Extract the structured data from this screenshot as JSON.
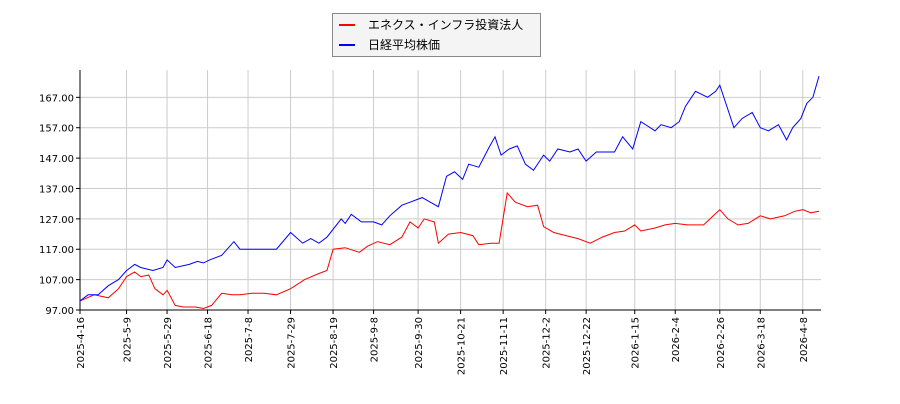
{
  "chart_data": {
    "type": "line",
    "xlim": [
      "2025-04-16",
      "2026-04-17"
    ],
    "ylim": [
      97,
      176
    ],
    "yticks": [
      97,
      107,
      117,
      127,
      137,
      147,
      157,
      167
    ],
    "ytick_labels": [
      "97.00",
      "107.00",
      "117.00",
      "127.00",
      "137.00",
      "147.00",
      "157.00",
      "167.00"
    ],
    "xticks": [
      "2025-04-16",
      "2025-05-09",
      "2025-05-29",
      "2025-06-18",
      "2025-07-08",
      "2025-07-29",
      "2025-08-19",
      "2025-09-08",
      "2025-09-30",
      "2025-10-21",
      "2025-11-11",
      "2025-12-02",
      "2025-12-22",
      "2026-01-15",
      "2026-02-04",
      "2026-02-26",
      "2026-03-18",
      "2026-04-08"
    ],
    "xtick_labels": [
      "2025-4-16",
      "2025-5-9",
      "2025-5-29",
      "2025-6-18",
      "2025-7-8",
      "2025-7-29",
      "2025-8-19",
      "2025-9-8",
      "2025-9-30",
      "2025-10-21",
      "2025-11-11",
      "2025-12-2",
      "2025-12-22",
      "2026-1-15",
      "2026-2-4",
      "2026-2-26",
      "2026-3-18",
      "2026-4-8"
    ],
    "grid": true,
    "legend_position": "top-center",
    "series": [
      {
        "name": "エネクス・インフラ投資法人",
        "color": "#ff0000",
        "points": [
          [
            "2025-04-16",
            100
          ],
          [
            "2025-04-23",
            102
          ],
          [
            "2025-04-30",
            101
          ],
          [
            "2025-05-05",
            104
          ],
          [
            "2025-05-09",
            108
          ],
          [
            "2025-05-13",
            109.5
          ],
          [
            "2025-05-16",
            108
          ],
          [
            "2025-05-20",
            108.5
          ],
          [
            "2025-05-23",
            104
          ],
          [
            "2025-05-27",
            102
          ],
          [
            "2025-05-29",
            103.5
          ],
          [
            "2025-06-02",
            98.5
          ],
          [
            "2025-06-06",
            98
          ],
          [
            "2025-06-12",
            98
          ],
          [
            "2025-06-16",
            97.5
          ],
          [
            "2025-06-20",
            98.5
          ],
          [
            "2025-06-25",
            102.5
          ],
          [
            "2025-06-30",
            102
          ],
          [
            "2025-07-04",
            102
          ],
          [
            "2025-07-10",
            102.5
          ],
          [
            "2025-07-16",
            102.5
          ],
          [
            "2025-07-22",
            102
          ],
          [
            "2025-07-29",
            104
          ],
          [
            "2025-08-05",
            107
          ],
          [
            "2025-08-12",
            109
          ],
          [
            "2025-08-16",
            110
          ],
          [
            "2025-08-19",
            117
          ],
          [
            "2025-08-25",
            117.5
          ],
          [
            "2025-09-01",
            116
          ],
          [
            "2025-09-05",
            118
          ],
          [
            "2025-09-10",
            119.5
          ],
          [
            "2025-09-16",
            118.5
          ],
          [
            "2025-09-22",
            121
          ],
          [
            "2025-09-26",
            126
          ],
          [
            "2025-09-30",
            124
          ],
          [
            "2025-10-03",
            127
          ],
          [
            "2025-10-08",
            126
          ],
          [
            "2025-10-10",
            119
          ],
          [
            "2025-10-15",
            122
          ],
          [
            "2025-10-21",
            122.5
          ],
          [
            "2025-10-27",
            121.5
          ],
          [
            "2025-10-30",
            118.5
          ],
          [
            "2025-11-05",
            119
          ],
          [
            "2025-11-09",
            119
          ],
          [
            "2025-11-13",
            135.5
          ],
          [
            "2025-11-17",
            132.5
          ],
          [
            "2025-11-23",
            131
          ],
          [
            "2025-11-28",
            131.5
          ],
          [
            "2025-12-01",
            124.5
          ],
          [
            "2025-12-06",
            122.5
          ],
          [
            "2025-12-12",
            121.5
          ],
          [
            "2025-12-18",
            120.5
          ],
          [
            "2025-12-24",
            119
          ],
          [
            "2025-12-30",
            121
          ],
          [
            "2026-01-05",
            122.5
          ],
          [
            "2026-01-10",
            123
          ],
          [
            "2026-01-15",
            125
          ],
          [
            "2026-01-18",
            123
          ],
          [
            "2026-01-25",
            124
          ],
          [
            "2026-01-30",
            125
          ],
          [
            "2026-02-04",
            125.5
          ],
          [
            "2026-02-10",
            125
          ],
          [
            "2026-02-18",
            125
          ],
          [
            "2026-02-22",
            127.5
          ],
          [
            "2026-02-26",
            130
          ],
          [
            "2026-03-02",
            127
          ],
          [
            "2026-03-07",
            125
          ],
          [
            "2026-03-12",
            125.5
          ],
          [
            "2026-03-18",
            128
          ],
          [
            "2026-03-23",
            127
          ],
          [
            "2026-03-30",
            128
          ],
          [
            "2026-04-04",
            129.5
          ],
          [
            "2026-04-08",
            130
          ],
          [
            "2026-04-12",
            129
          ],
          [
            "2026-04-16",
            129.5
          ]
        ]
      },
      {
        "name": "日経平均株価",
        "color": "#0000ff",
        "points": [
          [
            "2025-04-16",
            100
          ],
          [
            "2025-04-20",
            102
          ],
          [
            "2025-04-25",
            102
          ],
          [
            "2025-04-30",
            105
          ],
          [
            "2025-05-05",
            107
          ],
          [
            "2025-05-09",
            110
          ],
          [
            "2025-05-13",
            112
          ],
          [
            "2025-05-16",
            111
          ],
          [
            "2025-05-22",
            110
          ],
          [
            "2025-05-27",
            111
          ],
          [
            "2025-05-29",
            113.5
          ],
          [
            "2025-06-02",
            111
          ],
          [
            "2025-06-09",
            112
          ],
          [
            "2025-06-13",
            113
          ],
          [
            "2025-06-16",
            112.5
          ],
          [
            "2025-06-19",
            113.5
          ],
          [
            "2025-06-25",
            115
          ],
          [
            "2025-07-01",
            119.5
          ],
          [
            "2025-07-04",
            117
          ],
          [
            "2025-07-10",
            117
          ],
          [
            "2025-07-16",
            117
          ],
          [
            "2025-07-22",
            117
          ],
          [
            "2025-07-29",
            122.5
          ],
          [
            "2025-08-04",
            119
          ],
          [
            "2025-08-08",
            120.5
          ],
          [
            "2025-08-12",
            119
          ],
          [
            "2025-08-16",
            121
          ],
          [
            "2025-08-23",
            127
          ],
          [
            "2025-08-25",
            125.5
          ],
          [
            "2025-08-28",
            128.5
          ],
          [
            "2025-09-02",
            126
          ],
          [
            "2025-09-08",
            126
          ],
          [
            "2025-09-12",
            125
          ],
          [
            "2025-09-16",
            128
          ],
          [
            "2025-09-22",
            131.5
          ],
          [
            "2025-09-26",
            132.5
          ],
          [
            "2025-10-02",
            134
          ],
          [
            "2025-10-06",
            132.5
          ],
          [
            "2025-10-10",
            131
          ],
          [
            "2025-10-14",
            141
          ],
          [
            "2025-10-18",
            142.5
          ],
          [
            "2025-10-22",
            140
          ],
          [
            "2025-10-25",
            145
          ],
          [
            "2025-10-30",
            144
          ],
          [
            "2025-11-04",
            150.5
          ],
          [
            "2025-11-07",
            154
          ],
          [
            "2025-11-10",
            148
          ],
          [
            "2025-11-14",
            150
          ],
          [
            "2025-11-18",
            151
          ],
          [
            "2025-11-22",
            145
          ],
          [
            "2025-11-26",
            143
          ],
          [
            "2025-12-01",
            148
          ],
          [
            "2025-12-04",
            146
          ],
          [
            "2025-12-08",
            150
          ],
          [
            "2025-12-14",
            149
          ],
          [
            "2025-12-18",
            150
          ],
          [
            "2025-12-22",
            146
          ],
          [
            "2025-12-27",
            149
          ],
          [
            "2026-01-05",
            149
          ],
          [
            "2026-01-09",
            154
          ],
          [
            "2026-01-14",
            150
          ],
          [
            "2026-01-18",
            159
          ],
          [
            "2026-01-25",
            156
          ],
          [
            "2026-01-28",
            158
          ],
          [
            "2026-02-02",
            157
          ],
          [
            "2026-02-06",
            159
          ],
          [
            "2026-02-09",
            164
          ],
          [
            "2026-02-14",
            169
          ],
          [
            "2026-02-20",
            167
          ],
          [
            "2026-02-24",
            169
          ],
          [
            "2026-02-26",
            171
          ],
          [
            "2026-03-02",
            163
          ],
          [
            "2026-03-05",
            157
          ],
          [
            "2026-03-09",
            160
          ],
          [
            "2026-03-14",
            162
          ],
          [
            "2026-03-18",
            157
          ],
          [
            "2026-03-22",
            156
          ],
          [
            "2026-03-27",
            158
          ],
          [
            "2026-03-31",
            153
          ],
          [
            "2026-04-03",
            157
          ],
          [
            "2026-04-07",
            160
          ],
          [
            "2026-04-10",
            165
          ],
          [
            "2026-04-13",
            167
          ],
          [
            "2026-04-16",
            174
          ]
        ]
      }
    ]
  }
}
